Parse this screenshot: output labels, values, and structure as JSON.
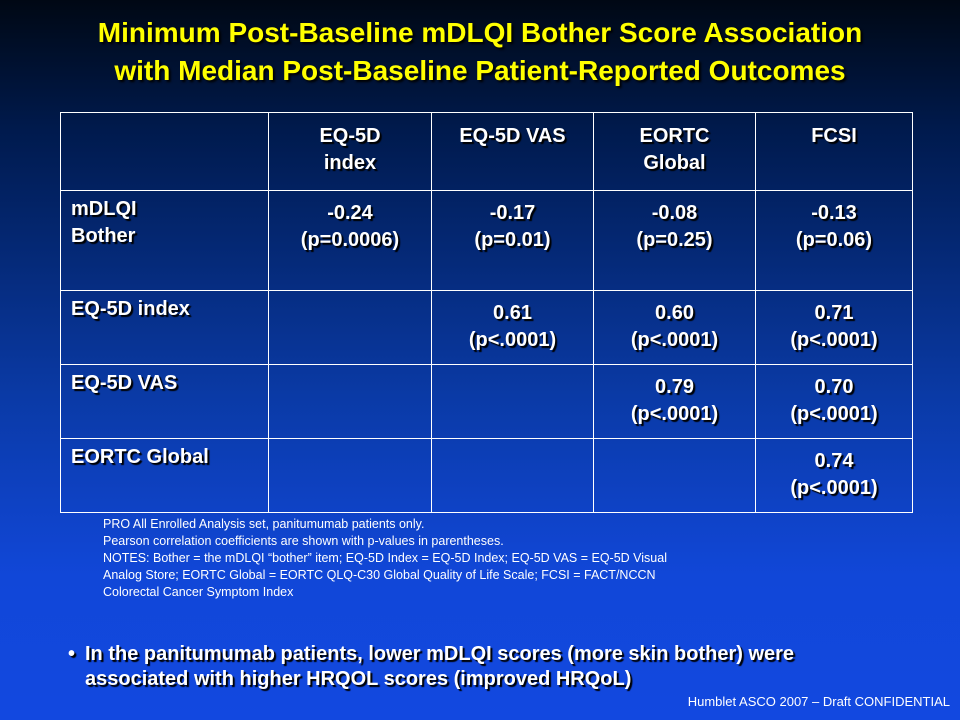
{
  "title": {
    "line1": "Minimum Post-Baseline mDLQI Bother Score Association",
    "line2": "with Median Post-Baseline Patient-Reported Outcomes"
  },
  "table": {
    "headers": [
      [
        "",
        ""
      ],
      [
        "EQ-5D",
        "index"
      ],
      [
        "EQ-5D VAS",
        ""
      ],
      [
        "EORTC",
        "Global"
      ],
      [
        "FCSI",
        ""
      ]
    ],
    "rows": [
      {
        "label": [
          "mDLQI",
          "Bother"
        ],
        "cells": [
          [
            "-0.24",
            "(p=0.0006)"
          ],
          [
            "-0.17",
            "(p=0.01)"
          ],
          [
            "-0.08",
            "(p=0.25)"
          ],
          [
            "-0.13",
            "(p=0.06)"
          ]
        ]
      },
      {
        "label": [
          "EQ-5D index",
          ""
        ],
        "cells": [
          [
            "",
            ""
          ],
          [
            "0.61",
            "(p<.0001)"
          ],
          [
            "0.60",
            "(p<.0001)"
          ],
          [
            "0.71",
            "(p<.0001)"
          ]
        ]
      },
      {
        "label": [
          "EQ-5D VAS",
          ""
        ],
        "cells": [
          [
            "",
            ""
          ],
          [
            "",
            ""
          ],
          [
            "0.79",
            "(p<.0001)"
          ],
          [
            "0.70",
            "(p<.0001)"
          ]
        ]
      },
      {
        "label": [
          "EORTC Global",
          ""
        ],
        "cells": [
          [
            "",
            ""
          ],
          [
            "",
            ""
          ],
          [
            "",
            ""
          ],
          [
            "0.74",
            "(p<.0001)"
          ]
        ]
      }
    ]
  },
  "notes": [
    "PRO All Enrolled Analysis set, panitumumab patients only.",
    "Pearson correlation coefficients are shown with p-values in parentheses.",
    "NOTES:   Bother = the mDLQI “bother” item; EQ-5D Index = EQ-5D Index; EQ-5D VAS = EQ-5D Visual",
    "Analog Store; EORTC Global = EORTC QLQ-C30 Global Quality of Life Scale; FCSI = FACT/NCCN",
    "Colorectal Cancer Symptom Index"
  ],
  "bullet": {
    "marker": "•",
    "line1": "In the panitumumab patients, lower mDLQI scores (more skin bother) were",
    "line2": "associated with higher HRQOL scores (improved HRQoL)"
  },
  "footer": "Humblet ASCO 2007 – Draft  CONFIDENTIAL"
}
